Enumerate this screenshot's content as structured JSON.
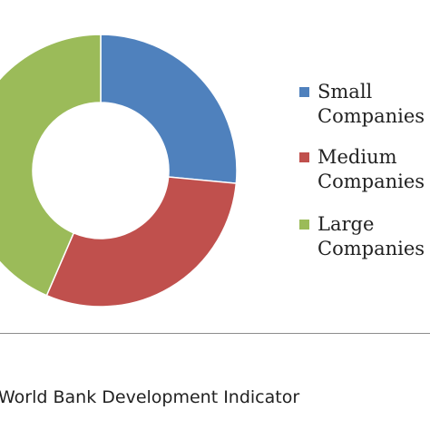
{
  "chart_data": {
    "type": "pie",
    "donut": true,
    "series": [
      {
        "name": "Small Companies",
        "label_lines": [
          "Small",
          "Companies"
        ],
        "value": 26.5,
        "color": "#4f81bd"
      },
      {
        "name": "Medium Companies",
        "label_lines": [
          "Medium",
          "Companies"
        ],
        "value": 30.0,
        "color": "#c0504d"
      },
      {
        "name": "Large Companies",
        "label_lines": [
          "Large",
          "Companies"
        ],
        "value": 43.5,
        "color": "#9bbb59"
      }
    ],
    "legend_position": "right"
  },
  "source_text": "World Bank Development Indicator"
}
